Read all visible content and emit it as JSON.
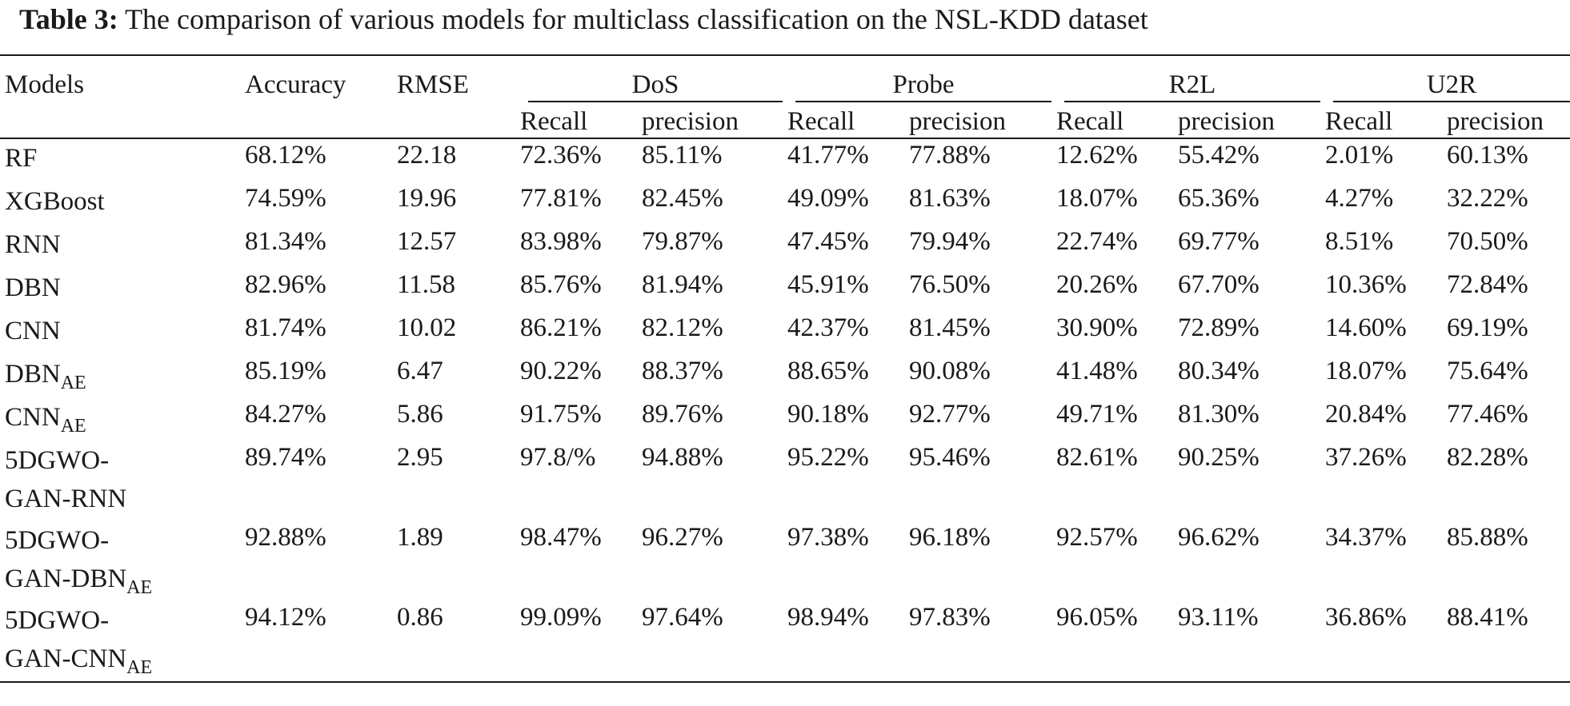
{
  "caption": {
    "label": "Table 3:",
    "text": "The comparison of various models for multiclass classification on the NSL-KDD dataset"
  },
  "header": {
    "models": "Models",
    "accuracy": "Accuracy",
    "rmse": "RMSE",
    "groups": [
      "DoS",
      "Probe",
      "R2L",
      "U2R"
    ],
    "recall": "Recall",
    "precision": "precision"
  },
  "rows": [
    {
      "model": "RF",
      "sub": "",
      "accuracy": "68.12%",
      "rmse": "22.18",
      "values": [
        "72.36%",
        "85.11%",
        "41.77%",
        "77.88%",
        "12.62%",
        "55.42%",
        "2.01%",
        "60.13%"
      ]
    },
    {
      "model": "XGBoost",
      "sub": "",
      "accuracy": "74.59%",
      "rmse": "19.96",
      "values": [
        "77.81%",
        "82.45%",
        "49.09%",
        "81.63%",
        "18.07%",
        "65.36%",
        "4.27%",
        "32.22%"
      ]
    },
    {
      "model": "RNN",
      "sub": "",
      "accuracy": "81.34%",
      "rmse": "12.57",
      "values": [
        "83.98%",
        "79.87%",
        "47.45%",
        "79.94%",
        "22.74%",
        "69.77%",
        "8.51%",
        "70.50%"
      ]
    },
    {
      "model": "DBN",
      "sub": "",
      "accuracy": "82.96%",
      "rmse": "11.58",
      "values": [
        "85.76%",
        "81.94%",
        "45.91%",
        "76.50%",
        "20.26%",
        "67.70%",
        "10.36%",
        "72.84%"
      ]
    },
    {
      "model": "CNN",
      "sub": "",
      "accuracy": "81.74%",
      "rmse": "10.02",
      "values": [
        "86.21%",
        "82.12%",
        "42.37%",
        "81.45%",
        "30.90%",
        "72.89%",
        "14.60%",
        "69.19%"
      ]
    },
    {
      "model": "DBN",
      "sub": "AE",
      "accuracy": "85.19%",
      "rmse": "6.47",
      "values": [
        "90.22%",
        "88.37%",
        "88.65%",
        "90.08%",
        "41.48%",
        "80.34%",
        "18.07%",
        "75.64%"
      ]
    },
    {
      "model": "CNN",
      "sub": "AE",
      "accuracy": "84.27%",
      "rmse": "5.86",
      "values": [
        "91.75%",
        "89.76%",
        "90.18%",
        "92.77%",
        "49.71%",
        "81.30%",
        "20.84%",
        "77.46%"
      ]
    },
    {
      "model": "5DGWO-\nGAN-RNN",
      "sub": "",
      "accuracy": "89.74%",
      "rmse": "2.95",
      "values": [
        "97.8/%",
        "94.88%",
        "95.22%",
        "95.46%",
        "82.61%",
        "90.25%",
        "37.26%",
        "82.28%"
      ]
    },
    {
      "model": "5DGWO-\nGAN-DBN",
      "sub": "AE",
      "accuracy": "92.88%",
      "rmse": "1.89",
      "values": [
        "98.47%",
        "96.27%",
        "97.38%",
        "96.18%",
        "92.57%",
        "96.62%",
        "34.37%",
        "85.88%"
      ]
    },
    {
      "model": "5DGWO-\nGAN-CNN",
      "sub": "AE",
      "accuracy": "94.12%",
      "rmse": "0.86",
      "values": [
        "99.09%",
        "97.64%",
        "98.94%",
        "97.83%",
        "96.05%",
        "93.11%",
        "36.86%",
        "88.41%"
      ]
    }
  ]
}
